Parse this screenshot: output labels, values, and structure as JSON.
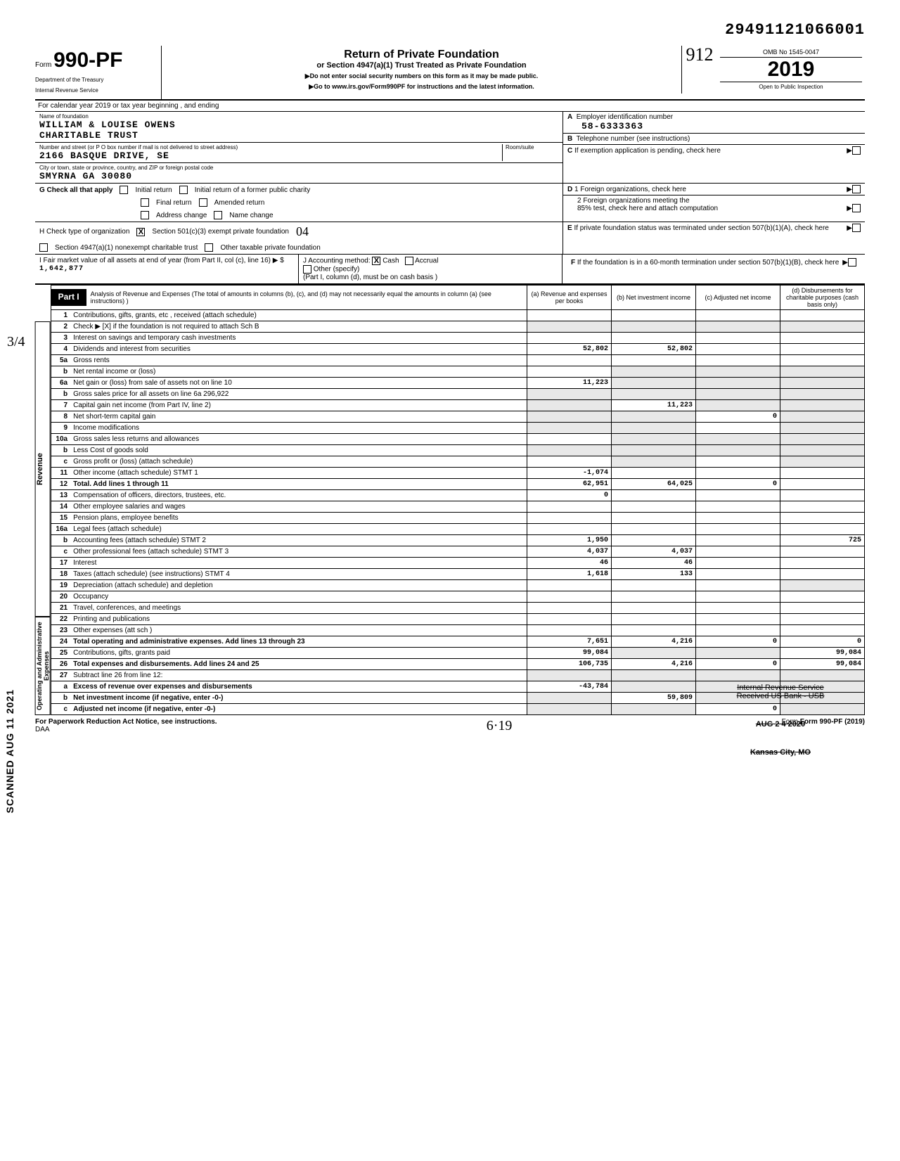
{
  "doc_number": "29491121066001",
  "form": {
    "prefix": "Form",
    "number": "990-PF",
    "dept1": "Department of the Treasury",
    "dept2": "Internal Revenue Service"
  },
  "header": {
    "title": "Return of Private Foundation",
    "subtitle": "or Section 4947(a)(1) Trust Treated as Private Foundation",
    "warn": "▶Do not enter social security numbers on this form as it may be made public.",
    "goto": "▶Go to www.irs.gov/Form990PF for instructions and the latest information.",
    "handwritten": "912"
  },
  "rightbox": {
    "omb": "OMB No 1545-0047",
    "year": "2019",
    "open": "Open to Public Inspection"
  },
  "calendar": "For calendar year 2019 or tax year beginning                                    , and ending",
  "foundation": {
    "name_lbl": "Name of foundation",
    "name": "WILLIAM & LOUISE OWENS",
    "name2": "CHARITABLE TRUST",
    "street_lbl": "Number and street (or P O box number if mail is not delivered to street address)",
    "street": "2166 BASQUE DRIVE, SE",
    "room_lbl": "Room/suite",
    "city_lbl": "City or town, state or province, country, and ZIP or foreign postal code",
    "city": "SMYRNA                    GA 30080"
  },
  "boxA": {
    "letter": "A",
    "lbl": "Employer identification number",
    "val": "58-6333363"
  },
  "boxB": {
    "letter": "B",
    "lbl": "Telephone number (see instructions)"
  },
  "boxC": {
    "letter": "C",
    "lbl": "If exemption application is pending, check here"
  },
  "boxD": {
    "letter": "D",
    "l1": "1  Foreign organizations, check here",
    "l2": "2  Foreign organizations meeting the",
    "l2b": "85% test, check here and attach computation"
  },
  "boxE": {
    "letter": "E",
    "lbl": "If private foundation status was terminated under section 507(b)(1)(A), check here"
  },
  "boxF": {
    "letter": "F",
    "lbl": "If the foundation is in a 60-month termination under section 507(b)(1)(B), check here"
  },
  "rowG": {
    "lbl": "G  Check all that apply",
    "o1": "Initial return",
    "o2": "Initial return of a former public charity",
    "o3": "Final return",
    "o4": "Amended return",
    "o5": "Address change",
    "o6": "Name change"
  },
  "rowH": {
    "lbl": "H  Check type of organization",
    "o1": "Section 501(c)(3) exempt private foundation",
    "o2": "Section 4947(a)(1) nonexempt charitable trust",
    "o3": "Other taxable private foundation",
    "hand": "04"
  },
  "rowI": {
    "lbl": "I   Fair market value of all assets at end of year (from Part II, col (c), line 16) ▶  $",
    "val": "1,642,877"
  },
  "rowJ": {
    "lbl": "J   Accounting method:",
    "o1": "Cash",
    "o2": "Accrual",
    "o3": "Other (specify)",
    "note": "(Part I, column (d), must be on cash basis )"
  },
  "part1": {
    "label": "Part I",
    "desc": "Analysis of Revenue and Expenses (The total of amounts in columns (b), (c), and (d) may not necessarily equal the amounts in column (a) (see instructions) )",
    "colA": "(a) Revenue and expenses per books",
    "colB": "(b) Net investment income",
    "colC": "(c) Adjusted net income",
    "colD": "(d) Disbursements for charitable purposes (cash basis only)"
  },
  "side_labels": {
    "revenue": "Revenue",
    "expenses": "Operating and Administrative Expenses"
  },
  "scanned_stamp": "SCANNED AUG 11 2021",
  "margin_hand": "3/4",
  "rows": [
    {
      "n": "1",
      "d": "Contributions, gifts, grants, etc , received (attach schedule)",
      "a": "",
      "b": "",
      "c": "",
      "dd": ""
    },
    {
      "n": "2",
      "d": "Check ▶  [X]  if the foundation is not required to attach Sch B",
      "a": "",
      "b": "",
      "c": "",
      "dd": "",
      "shadeA": true,
      "shadeB": true,
      "shadeC": true,
      "shadeD": true
    },
    {
      "n": "3",
      "d": "Interest on savings and temporary cash investments",
      "a": "",
      "b": "",
      "c": "",
      "dd": ""
    },
    {
      "n": "4",
      "d": "Dividends and interest from securities",
      "a": "52,802",
      "b": "52,802",
      "c": "",
      "dd": ""
    },
    {
      "n": "5a",
      "d": "Gross rents",
      "a": "",
      "b": "",
      "c": "",
      "dd": ""
    },
    {
      "n": "b",
      "d": "Net rental income or (loss)",
      "a": "",
      "b": "",
      "c": "",
      "dd": "",
      "shadeB": true,
      "shadeC": true,
      "shadeD": true
    },
    {
      "n": "6a",
      "d": "Net gain or (loss) from sale of assets not on line 10",
      "a": "11,223",
      "b": "",
      "c": "",
      "dd": "",
      "shadeB": true,
      "shadeC": true,
      "shadeD": true
    },
    {
      "n": "b",
      "d": "Gross sales price for all assets on line 6a            296,922",
      "a": "",
      "b": "",
      "c": "",
      "dd": "",
      "shadeA": true,
      "shadeB": true,
      "shadeC": true,
      "shadeD": true
    },
    {
      "n": "7",
      "d": "Capital gain net income (from Part IV, line 2)",
      "a": "",
      "b": "11,223",
      "c": "",
      "dd": "",
      "shadeA": true,
      "shadeC": true,
      "shadeD": true
    },
    {
      "n": "8",
      "d": "Net short-term capital gain",
      "a": "",
      "b": "",
      "c": "0",
      "dd": "",
      "shadeA": true,
      "shadeB": true,
      "shadeD": true
    },
    {
      "n": "9",
      "d": "Income modifications",
      "a": "",
      "b": "",
      "c": "",
      "dd": "",
      "shadeA": true,
      "shadeB": true,
      "shadeD": true
    },
    {
      "n": "10a",
      "d": "Gross sales less returns and allowances",
      "a": "",
      "b": "",
      "c": "",
      "dd": "",
      "shadeB": true,
      "shadeC": true,
      "shadeD": true
    },
    {
      "n": "b",
      "d": "Less Cost of goods sold",
      "a": "",
      "b": "",
      "c": "",
      "dd": "",
      "shadeA": true,
      "shadeB": true,
      "shadeC": true,
      "shadeD": true
    },
    {
      "n": "c",
      "d": "Gross profit or (loss) (attach schedule)",
      "a": "",
      "b": "",
      "c": "",
      "dd": "",
      "shadeB": true,
      "shadeD": true
    },
    {
      "n": "11",
      "d": "Other income (attach schedule)          STMT 1",
      "a": "-1,074",
      "b": "",
      "c": "",
      "dd": ""
    },
    {
      "n": "12",
      "d": "Total. Add lines 1 through 11",
      "a": "62,951",
      "b": "64,025",
      "c": "0",
      "dd": "",
      "bold": true
    },
    {
      "n": "13",
      "d": "Compensation of officers, directors, trustees, etc.",
      "a": "0",
      "b": "",
      "c": "",
      "dd": ""
    },
    {
      "n": "14",
      "d": "Other employee salaries and wages",
      "a": "",
      "b": "",
      "c": "",
      "dd": ""
    },
    {
      "n": "15",
      "d": "Pension plans, employee benefits",
      "a": "",
      "b": "",
      "c": "",
      "dd": ""
    },
    {
      "n": "16a",
      "d": "Legal fees (attach schedule)",
      "a": "",
      "b": "",
      "c": "",
      "dd": ""
    },
    {
      "n": "b",
      "d": "Accounting fees (attach schedule)        STMT 2",
      "a": "1,950",
      "b": "",
      "c": "",
      "dd": "725"
    },
    {
      "n": "c",
      "d": "Other professional fees (attach schedule)  STMT 3",
      "a": "4,037",
      "b": "4,037",
      "c": "",
      "dd": ""
    },
    {
      "n": "17",
      "d": "Interest",
      "a": "46",
      "b": "46",
      "c": "",
      "dd": ""
    },
    {
      "n": "18",
      "d": "Taxes (attach schedule) (see instructions)   STMT 4",
      "a": "1,618",
      "b": "133",
      "c": "",
      "dd": ""
    },
    {
      "n": "19",
      "d": "Depreciation (attach schedule) and depletion",
      "a": "",
      "b": "",
      "c": "",
      "dd": "",
      "shadeD": true
    },
    {
      "n": "20",
      "d": "Occupancy",
      "a": "",
      "b": "",
      "c": "",
      "dd": ""
    },
    {
      "n": "21",
      "d": "Travel, conferences, and meetings",
      "a": "",
      "b": "",
      "c": "",
      "dd": ""
    },
    {
      "n": "22",
      "d": "Printing and publications",
      "a": "",
      "b": "",
      "c": "",
      "dd": ""
    },
    {
      "n": "23",
      "d": "Other expenses (att sch )",
      "a": "",
      "b": "",
      "c": "",
      "dd": ""
    },
    {
      "n": "24",
      "d": "Total operating and administrative expenses. Add lines 13 through 23",
      "a": "7,651",
      "b": "4,216",
      "c": "0",
      "dd": "0",
      "bold": true
    },
    {
      "n": "25",
      "d": "Contributions, gifts, grants paid",
      "a": "99,084",
      "b": "",
      "c": "",
      "dd": "99,084",
      "shadeB": true,
      "shadeC": true
    },
    {
      "n": "26",
      "d": "Total expenses and disbursements. Add lines 24 and 25",
      "a": "106,735",
      "b": "4,216",
      "c": "0",
      "dd": "99,084",
      "bold": true
    },
    {
      "n": "27",
      "d": "Subtract line 26 from line 12:",
      "a": "",
      "b": "",
      "c": "",
      "dd": "",
      "shadeA": true,
      "shadeB": true,
      "shadeC": true,
      "shadeD": true
    },
    {
      "n": "a",
      "d": "Excess of revenue over expenses and disbursements",
      "a": "-43,784",
      "b": "",
      "c": "",
      "dd": "",
      "bold": true,
      "shadeB": true,
      "shadeC": true,
      "shadeD": true
    },
    {
      "n": "b",
      "d": "Net investment income (if negative, enter -0-)",
      "a": "",
      "b": "59,809",
      "c": "",
      "dd": "",
      "bold": true,
      "shadeA": true,
      "shadeC": true,
      "shadeD": true
    },
    {
      "n": "c",
      "d": "Adjusted net income (if negative, enter -0-)",
      "a": "",
      "b": "",
      "c": "0",
      "dd": "",
      "bold": true,
      "shadeA": true,
      "shadeB": true,
      "shadeD": true
    }
  ],
  "irs_stamp": {
    "l1": "Internal Revenue Service",
    "l2": "Received US Bank - USB",
    "l3": "AUG 2 4 2020",
    "l4": "Kansas City, MO"
  },
  "footer": {
    "left": "For Paperwork Reduction Act Notice, see instructions.",
    "left2": "DAA",
    "hand": "6·19",
    "right": "Form 990-PF (2019)"
  }
}
